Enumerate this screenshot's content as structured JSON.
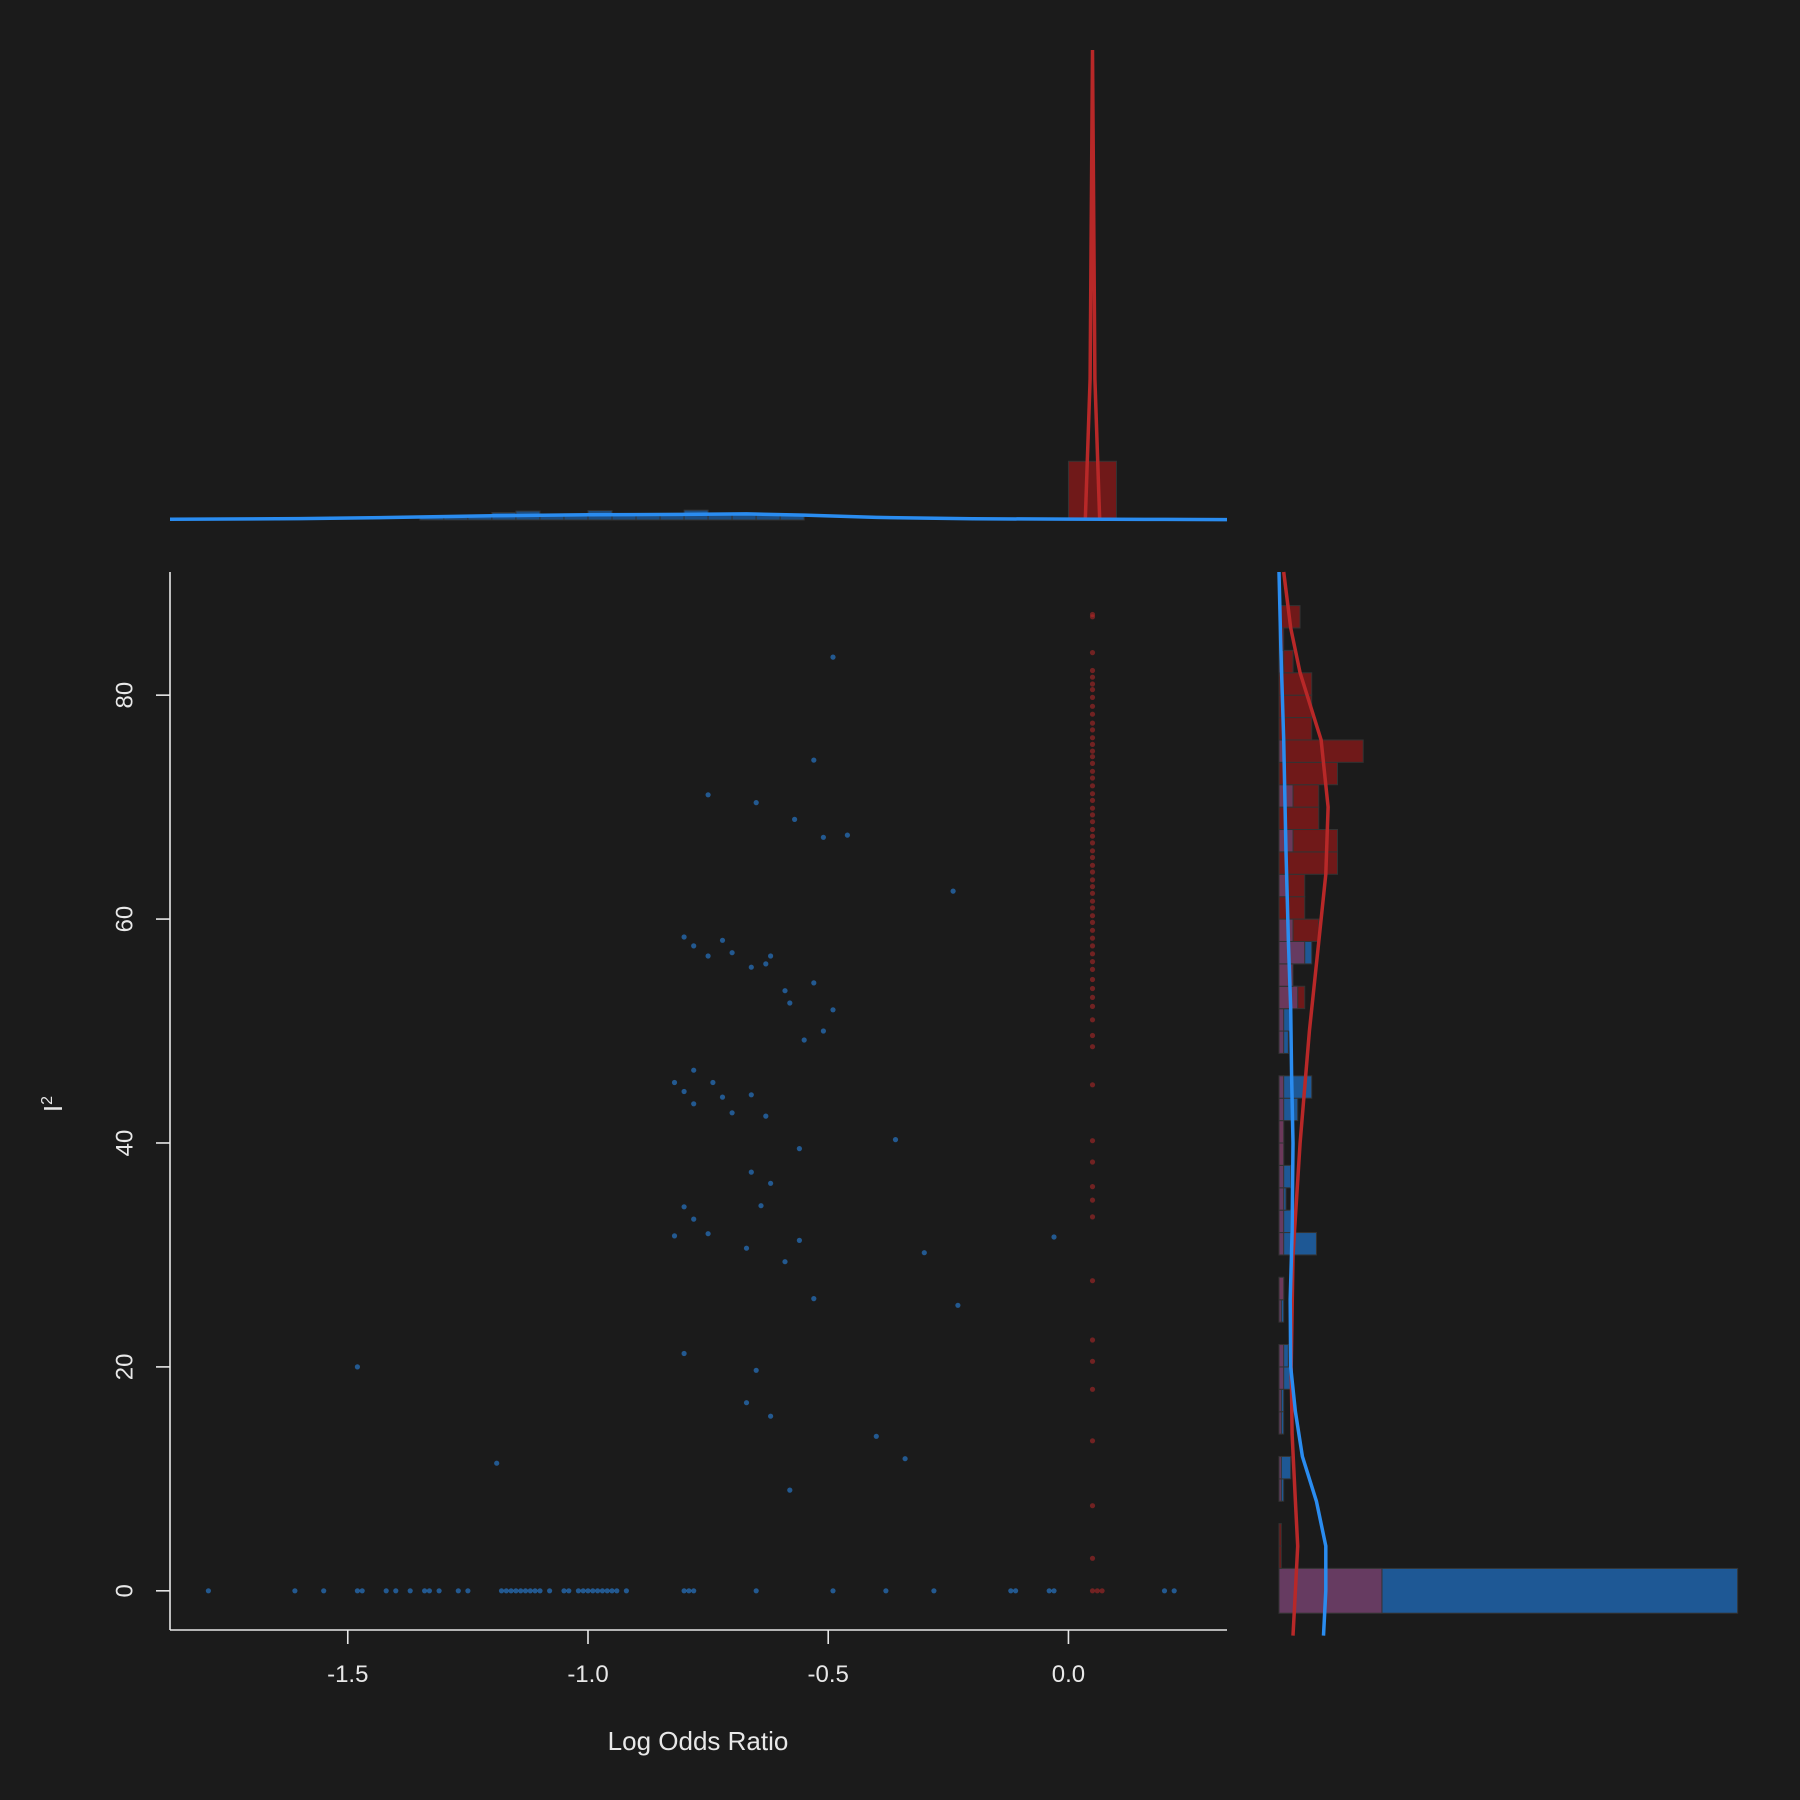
{
  "chart_data": {
    "type": "scatter",
    "title": "",
    "xlabel": "Log Odds Ratio",
    "ylabel": "I",
    "ylabel_superscript": "2",
    "xlim": [
      -1.87,
      0.33
    ],
    "ylim": [
      -3.5,
      91
    ],
    "x_ticks": [
      -1.5,
      -1.0,
      -0.5,
      0.0
    ],
    "x_tick_labels": [
      "-1.5",
      "-1.0",
      "-0.5",
      "0.0"
    ],
    "y_ticks": [
      0,
      20,
      40,
      60,
      80
    ],
    "y_tick_labels": [
      "0",
      "20",
      "40",
      "60",
      "80"
    ],
    "grid": false,
    "colors": {
      "background": "#1b1b1b",
      "blue": "#2a8cf0",
      "red": "#b82828",
      "blue_fill": "#1f5fa3",
      "red_fill": "#7a1a1a",
      "overlap_fill": "#6a3a5e",
      "axis": "#e8e8e8"
    },
    "series": [
      {
        "color": "blue",
        "points": [
          [
            -1.79,
            0
          ],
          [
            -1.61,
            0
          ],
          [
            -1.55,
            0
          ],
          [
            -1.48,
            0
          ],
          [
            -1.47,
            0
          ],
          [
            -1.42,
            0
          ],
          [
            -1.4,
            0
          ],
          [
            -1.37,
            0
          ],
          [
            -1.34,
            0
          ],
          [
            -1.33,
            0
          ],
          [
            -1.31,
            0
          ],
          [
            -1.27,
            0
          ],
          [
            -1.25,
            0
          ],
          [
            -1.18,
            0
          ],
          [
            -1.17,
            0
          ],
          [
            -1.16,
            0
          ],
          [
            -1.15,
            0
          ],
          [
            -1.14,
            0
          ],
          [
            -1.13,
            0
          ],
          [
            -1.12,
            0
          ],
          [
            -1.11,
            0
          ],
          [
            -1.1,
            0
          ],
          [
            -1.08,
            0
          ],
          [
            -1.05,
            0
          ],
          [
            -1.04,
            0
          ],
          [
            -1.02,
            0
          ],
          [
            -1.01,
            0
          ],
          [
            -1.0,
            0
          ],
          [
            -0.99,
            0
          ],
          [
            -0.98,
            0
          ],
          [
            -0.97,
            0
          ],
          [
            -0.96,
            0
          ],
          [
            -0.95,
            0
          ],
          [
            -0.94,
            0
          ],
          [
            -0.92,
            0
          ],
          [
            -0.8,
            0
          ],
          [
            -0.79,
            0
          ],
          [
            -0.78,
            0
          ],
          [
            -0.65,
            0
          ],
          [
            -0.49,
            0
          ],
          [
            -0.38,
            0
          ],
          [
            -0.28,
            0
          ],
          [
            -0.12,
            0
          ],
          [
            -0.11,
            0
          ],
          [
            -0.04,
            0
          ],
          [
            -0.03,
            0
          ],
          [
            0.2,
            0
          ],
          [
            0.22,
            0
          ],
          [
            -0.49,
            83.4
          ],
          [
            -0.53,
            74.2
          ],
          [
            -0.75,
            71.1
          ],
          [
            -0.65,
            70.4
          ],
          [
            -0.57,
            68.9
          ],
          [
            -0.51,
            67.3
          ],
          [
            -0.46,
            67.5
          ],
          [
            -0.24,
            62.5
          ],
          [
            -0.8,
            58.4
          ],
          [
            -0.72,
            58.1
          ],
          [
            -0.78,
            57.6
          ],
          [
            -0.75,
            56.7
          ],
          [
            -0.7,
            57.0
          ],
          [
            -0.62,
            56.7
          ],
          [
            -0.63,
            56.0
          ],
          [
            -0.66,
            55.7
          ],
          [
            -0.53,
            54.3
          ],
          [
            -0.59,
            53.6
          ],
          [
            -0.58,
            52.5
          ],
          [
            -0.49,
            51.9
          ],
          [
            -0.51,
            50.0
          ],
          [
            -0.55,
            49.2
          ],
          [
            -0.78,
            46.5
          ],
          [
            -0.82,
            45.4
          ],
          [
            -0.74,
            45.4
          ],
          [
            -0.8,
            44.6
          ],
          [
            -0.66,
            44.3
          ],
          [
            -0.72,
            44.1
          ],
          [
            -0.78,
            43.5
          ],
          [
            -0.7,
            42.7
          ],
          [
            -0.63,
            42.4
          ],
          [
            -0.36,
            40.3
          ],
          [
            -0.56,
            39.5
          ],
          [
            -0.66,
            37.4
          ],
          [
            -0.62,
            36.4
          ],
          [
            -0.64,
            34.4
          ],
          [
            -0.8,
            34.3
          ],
          [
            -0.78,
            33.2
          ],
          [
            -0.82,
            31.7
          ],
          [
            -0.75,
            31.9
          ],
          [
            -0.56,
            31.3
          ],
          [
            -0.03,
            31.6
          ],
          [
            -0.67,
            30.6
          ],
          [
            -0.3,
            30.2
          ],
          [
            -0.59,
            29.4
          ],
          [
            -0.53,
            26.1
          ],
          [
            -0.23,
            25.5
          ],
          [
            -0.8,
            21.2
          ],
          [
            -1.48,
            20.0
          ],
          [
            -0.65,
            19.7
          ],
          [
            -0.67,
            16.8
          ],
          [
            -0.62,
            15.6
          ],
          [
            -0.4,
            13.8
          ],
          [
            -0.34,
            11.8
          ],
          [
            -1.19,
            11.4
          ],
          [
            -0.58,
            9.0
          ]
        ]
      },
      {
        "color": "red",
        "points": [
          [
            0.05,
            87.2
          ],
          [
            0.05,
            87.0
          ],
          [
            0.05,
            83.8
          ],
          [
            0.05,
            82.2
          ],
          [
            0.05,
            81.6
          ],
          [
            0.05,
            81.0
          ],
          [
            0.05,
            80.5
          ],
          [
            0.05,
            79.8
          ],
          [
            0.05,
            79.0
          ],
          [
            0.05,
            78.3
          ],
          [
            0.05,
            77.5
          ],
          [
            0.05,
            76.9
          ],
          [
            0.05,
            76.2
          ],
          [
            0.05,
            75.6
          ],
          [
            0.05,
            75.0
          ],
          [
            0.05,
            74.5
          ],
          [
            0.05,
            73.9
          ],
          [
            0.05,
            73.2
          ],
          [
            0.05,
            72.6
          ],
          [
            0.05,
            71.9
          ],
          [
            0.05,
            71.2
          ],
          [
            0.05,
            70.6
          ],
          [
            0.05,
            69.9
          ],
          [
            0.05,
            69.3
          ],
          [
            0.05,
            68.7
          ],
          [
            0.05,
            68.0
          ],
          [
            0.05,
            67.4
          ],
          [
            0.05,
            66.8
          ],
          [
            0.05,
            66.1
          ],
          [
            0.05,
            65.5
          ],
          [
            0.05,
            64.8
          ],
          [
            0.05,
            64.2
          ],
          [
            0.05,
            63.5
          ],
          [
            0.05,
            62.9
          ],
          [
            0.05,
            62.3
          ],
          [
            0.05,
            61.6
          ],
          [
            0.05,
            61.0
          ],
          [
            0.05,
            60.3
          ],
          [
            0.05,
            59.7
          ],
          [
            0.05,
            59.0
          ],
          [
            0.05,
            58.3
          ],
          [
            0.05,
            57.6
          ],
          [
            0.05,
            56.9
          ],
          [
            0.05,
            56.2
          ],
          [
            0.05,
            55.5
          ],
          [
            0.05,
            54.6
          ],
          [
            0.05,
            53.8
          ],
          [
            0.05,
            53.0
          ],
          [
            0.05,
            52.2
          ],
          [
            0.05,
            51.0
          ],
          [
            0.05,
            49.6
          ],
          [
            0.05,
            48.6
          ],
          [
            0.05,
            45.2
          ],
          [
            0.05,
            40.2
          ],
          [
            0.05,
            38.3
          ],
          [
            0.05,
            36.1
          ],
          [
            0.05,
            34.9
          ],
          [
            0.05,
            33.4
          ],
          [
            0.05,
            27.7
          ],
          [
            0.05,
            22.4
          ],
          [
            0.05,
            20.5
          ],
          [
            0.05,
            18.0
          ],
          [
            0.05,
            13.4
          ],
          [
            0.05,
            7.6
          ],
          [
            0.05,
            2.9
          ],
          [
            0.05,
            0
          ],
          [
            0.06,
            0
          ],
          [
            0.07,
            0
          ]
        ]
      }
    ],
    "top_histogram": {
      "blue_bins": [
        [
          -1.35,
          -1.3,
          0.5
        ],
        [
          -1.3,
          -1.25,
          0.5
        ],
        [
          -1.25,
          -1.2,
          0.8
        ],
        [
          -1.2,
          -1.15,
          1.6
        ],
        [
          -1.15,
          -1.1,
          1.9
        ],
        [
          -1.1,
          -1.05,
          1.1
        ],
        [
          -1.05,
          -1.0,
          1.3
        ],
        [
          -1.0,
          -0.95,
          2.0
        ],
        [
          -0.95,
          -0.9,
          1.3
        ],
        [
          -0.9,
          -0.85,
          0.9
        ],
        [
          -0.85,
          -0.8,
          1.1
        ],
        [
          -0.8,
          -0.75,
          2.1
        ],
        [
          -0.75,
          -0.7,
          1.2
        ],
        [
          -0.7,
          -0.65,
          1.5
        ],
        [
          -0.65,
          -0.6,
          1.4
        ],
        [
          -0.6,
          -0.55,
          1.2
        ]
      ],
      "red_bins": [
        [
          0.0,
          0.1,
          12.5
        ]
      ],
      "blue_density": [
        [
          -1.87,
          0.15
        ],
        [
          -1.6,
          0.3
        ],
        [
          -1.4,
          0.55
        ],
        [
          -1.2,
          0.9
        ],
        [
          -1.0,
          1.1
        ],
        [
          -0.8,
          1.2
        ],
        [
          -0.67,
          1.3
        ],
        [
          -0.55,
          1.05
        ],
        [
          -0.4,
          0.55
        ],
        [
          -0.2,
          0.25
        ],
        [
          0.0,
          0.2
        ],
        [
          0.2,
          0.12
        ],
        [
          0.33,
          0.08
        ]
      ],
      "red_density": [
        [
          0.035,
          0
        ],
        [
          0.045,
          30
        ],
        [
          0.05,
          100
        ],
        [
          0.055,
          30
        ],
        [
          0.065,
          0
        ]
      ],
      "max": 100
    },
    "right_histogram": {
      "bins": [
        {
          "lo": -2,
          "hi": 2,
          "blue": 98,
          "red": 22
        },
        {
          "lo": 2,
          "hi": 4,
          "blue": 0,
          "red": 0.5
        },
        {
          "lo": 4,
          "hi": 6,
          "blue": 0,
          "red": 0.5
        },
        {
          "lo": 8,
          "hi": 10,
          "blue": 1,
          "red": 0.5
        },
        {
          "lo": 10,
          "hi": 12,
          "blue": 2.5,
          "red": 0.5
        },
        {
          "lo": 14,
          "hi": 16,
          "blue": 1,
          "red": 0.5
        },
        {
          "lo": 16,
          "hi": 18,
          "blue": 1,
          "red": 0.5
        },
        {
          "lo": 18,
          "hi": 20,
          "blue": 2.5,
          "red": 1
        },
        {
          "lo": 20,
          "hi": 22,
          "blue": 2,
          "red": 1
        },
        {
          "lo": 24,
          "hi": 26,
          "blue": 1,
          "red": 0.5
        },
        {
          "lo": 26,
          "hi": 28,
          "blue": 1,
          "red": 1
        },
        {
          "lo": 30,
          "hi": 32,
          "blue": 8,
          "red": 1
        },
        {
          "lo": 32,
          "hi": 34,
          "blue": 2.5,
          "red": 1
        },
        {
          "lo": 34,
          "hi": 36,
          "blue": 1.5,
          "red": 1
        },
        {
          "lo": 36,
          "hi": 38,
          "blue": 2.5,
          "red": 1
        },
        {
          "lo": 38,
          "hi": 40,
          "blue": 1,
          "red": 1
        },
        {
          "lo": 40,
          "hi": 42,
          "blue": 1,
          "red": 1
        },
        {
          "lo": 42,
          "hi": 44,
          "blue": 4,
          "red": 1
        },
        {
          "lo": 44,
          "hi": 46,
          "blue": 7,
          "red": 1
        },
        {
          "lo": 48,
          "hi": 50,
          "blue": 2,
          "red": 1
        },
        {
          "lo": 50,
          "hi": 52,
          "blue": 2.5,
          "red": 1
        },
        {
          "lo": 52,
          "hi": 54,
          "blue": 4,
          "red": 5.5
        },
        {
          "lo": 54,
          "hi": 56,
          "blue": 3,
          "red": 3
        },
        {
          "lo": 56,
          "hi": 58,
          "blue": 7,
          "red": 5.5
        },
        {
          "lo": 58,
          "hi": 60,
          "blue": 3,
          "red": 8.5
        },
        {
          "lo": 60,
          "hi": 62,
          "blue": 0,
          "red": 5.5
        },
        {
          "lo": 62,
          "hi": 64,
          "blue": 2,
          "red": 5.5
        },
        {
          "lo": 64,
          "hi": 66,
          "blue": 0,
          "red": 12.5
        },
        {
          "lo": 66,
          "hi": 68,
          "blue": 3,
          "red": 12.5
        },
        {
          "lo": 68,
          "hi": 70,
          "blue": 0,
          "red": 8.5
        },
        {
          "lo": 70,
          "hi": 72,
          "blue": 3,
          "red": 8.5
        },
        {
          "lo": 72,
          "hi": 74,
          "blue": 0,
          "red": 12.5
        },
        {
          "lo": 74,
          "hi": 76,
          "blue": 1,
          "red": 18
        },
        {
          "lo": 76,
          "hi": 78,
          "blue": 0,
          "red": 7
        },
        {
          "lo": 78,
          "hi": 80,
          "blue": 0,
          "red": 7
        },
        {
          "lo": 80,
          "hi": 82,
          "blue": 0,
          "red": 7
        },
        {
          "lo": 82,
          "hi": 84,
          "blue": 1,
          "red": 3
        },
        {
          "lo": 84,
          "hi": 86,
          "blue": 0,
          "red": 1
        },
        {
          "lo": 86,
          "hi": 88,
          "blue": 0,
          "red": 4.5
        }
      ],
      "max": 100,
      "red_density": [
        [
          -4,
          3
        ],
        [
          0,
          3.5
        ],
        [
          4,
          4
        ],
        [
          8,
          3.5
        ],
        [
          14,
          2.8
        ],
        [
          20,
          2.6
        ],
        [
          30,
          3
        ],
        [
          40,
          4.5
        ],
        [
          50,
          6.5
        ],
        [
          58,
          8.5
        ],
        [
          64,
          10
        ],
        [
          70,
          10.5
        ],
        [
          76,
          9
        ],
        [
          82,
          4.5
        ],
        [
          86,
          2.5
        ],
        [
          91,
          1
        ]
      ],
      "blue_density": [
        [
          -4,
          9.5
        ],
        [
          0,
          10
        ],
        [
          4,
          10
        ],
        [
          8,
          8
        ],
        [
          12,
          5
        ],
        [
          16,
          3.5
        ],
        [
          20,
          2.5
        ],
        [
          26,
          2.4
        ],
        [
          32,
          2.8
        ],
        [
          40,
          3
        ],
        [
          46,
          2.7
        ],
        [
          52,
          2.5
        ],
        [
          58,
          2
        ],
        [
          66,
          1.5
        ],
        [
          76,
          1
        ],
        [
          84,
          0.4
        ],
        [
          91,
          0
        ]
      ]
    }
  }
}
